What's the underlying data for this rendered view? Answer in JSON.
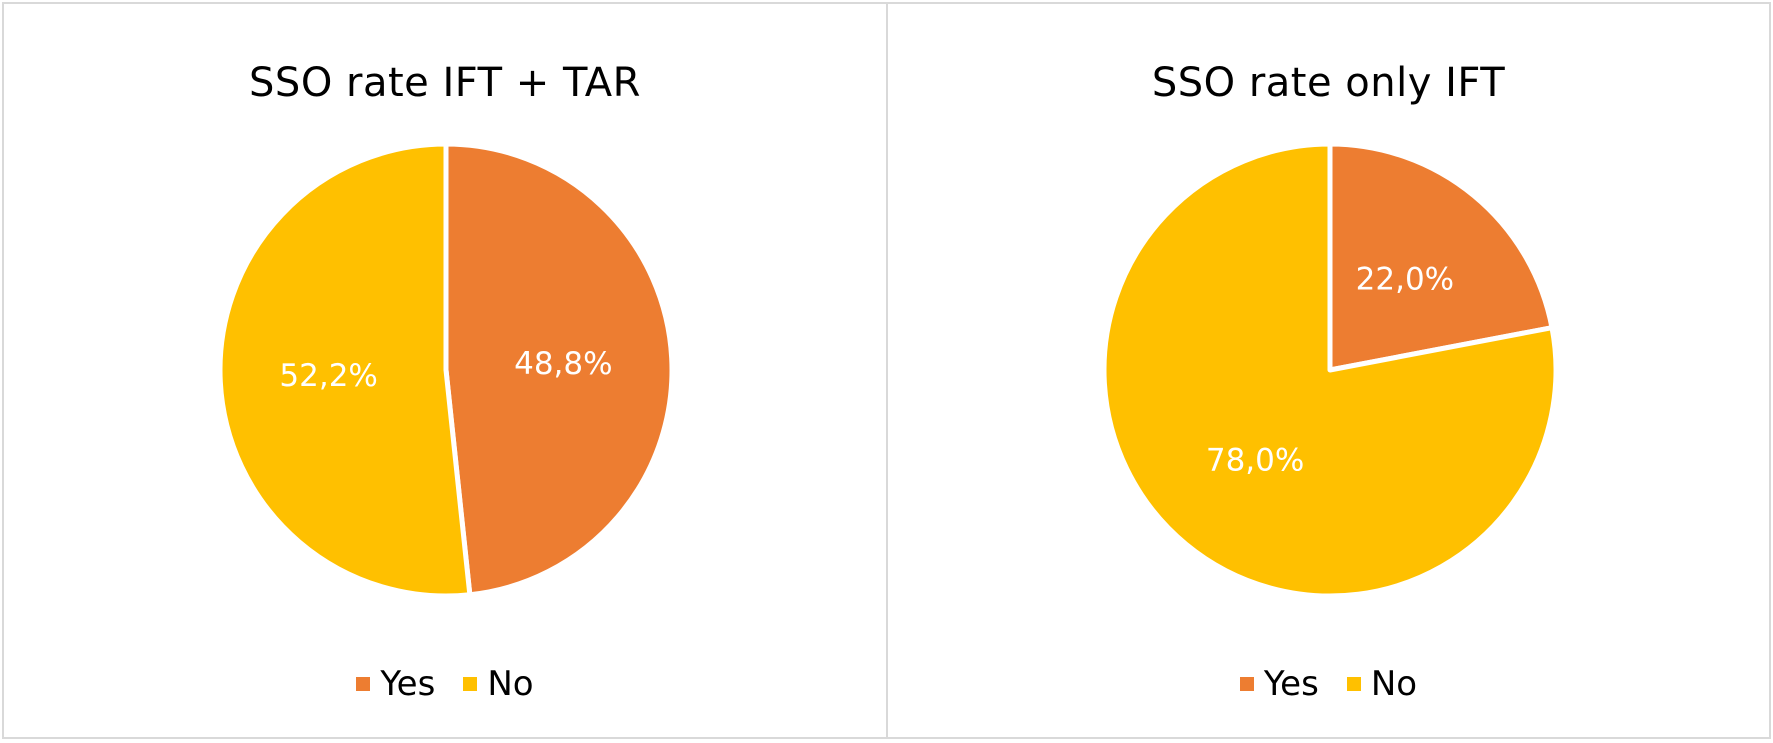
{
  "chart_data": [
    {
      "type": "pie",
      "title": "SSO rate IFT + TAR",
      "categories": [
        "Yes",
        "No"
      ],
      "values": [
        48.8,
        52.2
      ],
      "data_labels": [
        "48,8%",
        "52,2%"
      ],
      "colors": [
        "#ED7D31",
        "#FFC000"
      ],
      "legend": {
        "position": "bottom",
        "entries": [
          "Yes",
          "No"
        ]
      }
    },
    {
      "type": "pie",
      "title": "SSO rate only IFT",
      "categories": [
        "Yes",
        "No"
      ],
      "values": [
        22.0,
        78.0
      ],
      "data_labels": [
        "22,0%",
        "78,0%"
      ],
      "colors": [
        "#ED7D31",
        "#FFC000"
      ],
      "legend": {
        "position": "bottom",
        "entries": [
          "Yes",
          "No"
        ]
      }
    }
  ]
}
